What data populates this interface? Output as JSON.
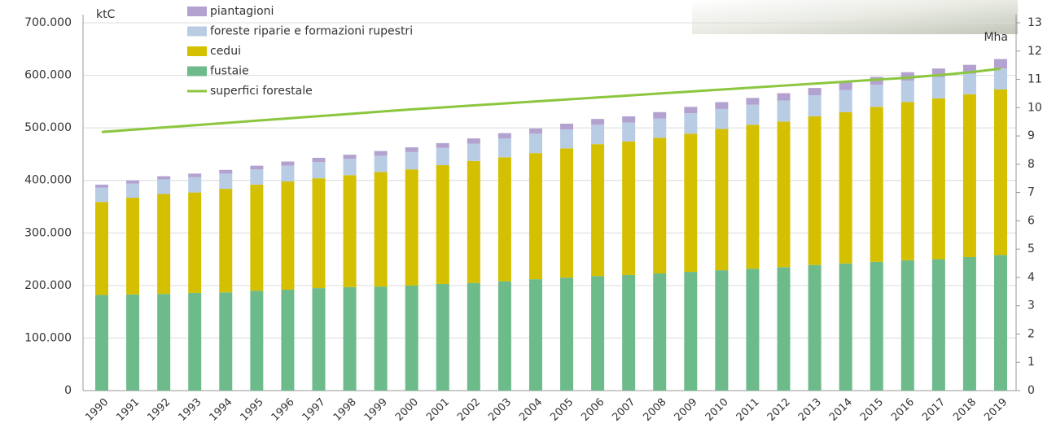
{
  "chart_data": {
    "type": "bar",
    "stacked": true,
    "ylabel": "ktC",
    "y2label": "Mha",
    "categories": [
      "1990",
      "1991",
      "1992",
      "1993",
      "1994",
      "1995",
      "1996",
      "1997",
      "1998",
      "1999",
      "2000",
      "2001",
      "2002",
      "2003",
      "2004",
      "2005",
      "2006",
      "2007",
      "2008",
      "2009",
      "2010",
      "2011",
      "2012",
      "2013",
      "2014",
      "2015",
      "2016",
      "2017",
      "2018",
      "2019"
    ],
    "series": [
      {
        "name": "fustaie",
        "color": "#6dba8a",
        "type": "bar",
        "values": [
          182000,
          183000,
          184000,
          186000,
          187000,
          190000,
          192000,
          195000,
          197000,
          198000,
          200000,
          203000,
          205000,
          208000,
          212000,
          215000,
          218000,
          220000,
          223000,
          226000,
          229000,
          232000,
          235000,
          239000,
          242000,
          245000,
          248000,
          250000,
          254000,
          258000
        ]
      },
      {
        "name": "cedui",
        "color": "#d4c000",
        "type": "bar",
        "values": [
          177000,
          184000,
          190000,
          191000,
          197000,
          202000,
          206000,
          209000,
          213000,
          218000,
          221000,
          226000,
          232000,
          236000,
          240000,
          246000,
          251000,
          254000,
          258000,
          263000,
          269000,
          274000,
          277000,
          283000,
          288000,
          295000,
          301000,
          306000,
          310000,
          315000
        ]
      },
      {
        "name": "foreste riparie e formazioni rupestri",
        "color": "#b8cce4",
        "type": "bar",
        "values": [
          27000,
          27000,
          28000,
          29000,
          29000,
          29000,
          30000,
          31000,
          31000,
          31000,
          33000,
          33000,
          33000,
          36000,
          37000,
          36000,
          37000,
          36000,
          37000,
          39000,
          38000,
          38000,
          40000,
          40000,
          42000,
          42000,
          41000,
          41000,
          39000,
          40000
        ]
      },
      {
        "name": "piantagioni",
        "color": "#b3a2cf",
        "type": "bar",
        "values": [
          6000,
          6000,
          6000,
          7000,
          7000,
          7000,
          8000,
          8000,
          8000,
          9000,
          9000,
          9000,
          10000,
          10000,
          10000,
          11000,
          11000,
          12000,
          12000,
          12000,
          13000,
          13000,
          14000,
          14000,
          15000,
          15000,
          16000,
          16000,
          17000,
          18000
        ]
      },
      {
        "name": "superfici forestale",
        "color": "#8cc63f",
        "type": "line",
        "axis": "y2",
        "values": [
          9.14,
          9.22,
          9.3,
          9.38,
          9.46,
          9.54,
          9.62,
          9.7,
          9.78,
          9.86,
          9.94,
          10.01,
          10.08,
          10.15,
          10.22,
          10.29,
          10.36,
          10.43,
          10.5,
          10.57,
          10.64,
          10.71,
          10.78,
          10.85,
          10.92,
          10.99,
          11.06,
          11.15,
          11.25,
          11.38
        ]
      }
    ],
    "legend_order": [
      3,
      2,
      1,
      0,
      4
    ],
    "ylim": [
      0,
      700000
    ],
    "yticks": [
      0,
      {
        "value": 100000,
        "label": "100.000"
      },
      {
        "value": 200000,
        "label": "200.000"
      },
      {
        "value": 300000,
        "label": "300.000"
      },
      {
        "value": 400000,
        "label": "400.000"
      },
      {
        "value": 500000,
        "label": "500.000"
      },
      {
        "value": 600000,
        "label": "600.000"
      },
      {
        "value": 700000,
        "label": "700.000"
      }
    ],
    "y2lim": [
      0,
      13
    ],
    "y2ticks": [
      0,
      1,
      2,
      3,
      4,
      5,
      6,
      7,
      8,
      9,
      10,
      11,
      12,
      13
    ],
    "grid": true
  }
}
